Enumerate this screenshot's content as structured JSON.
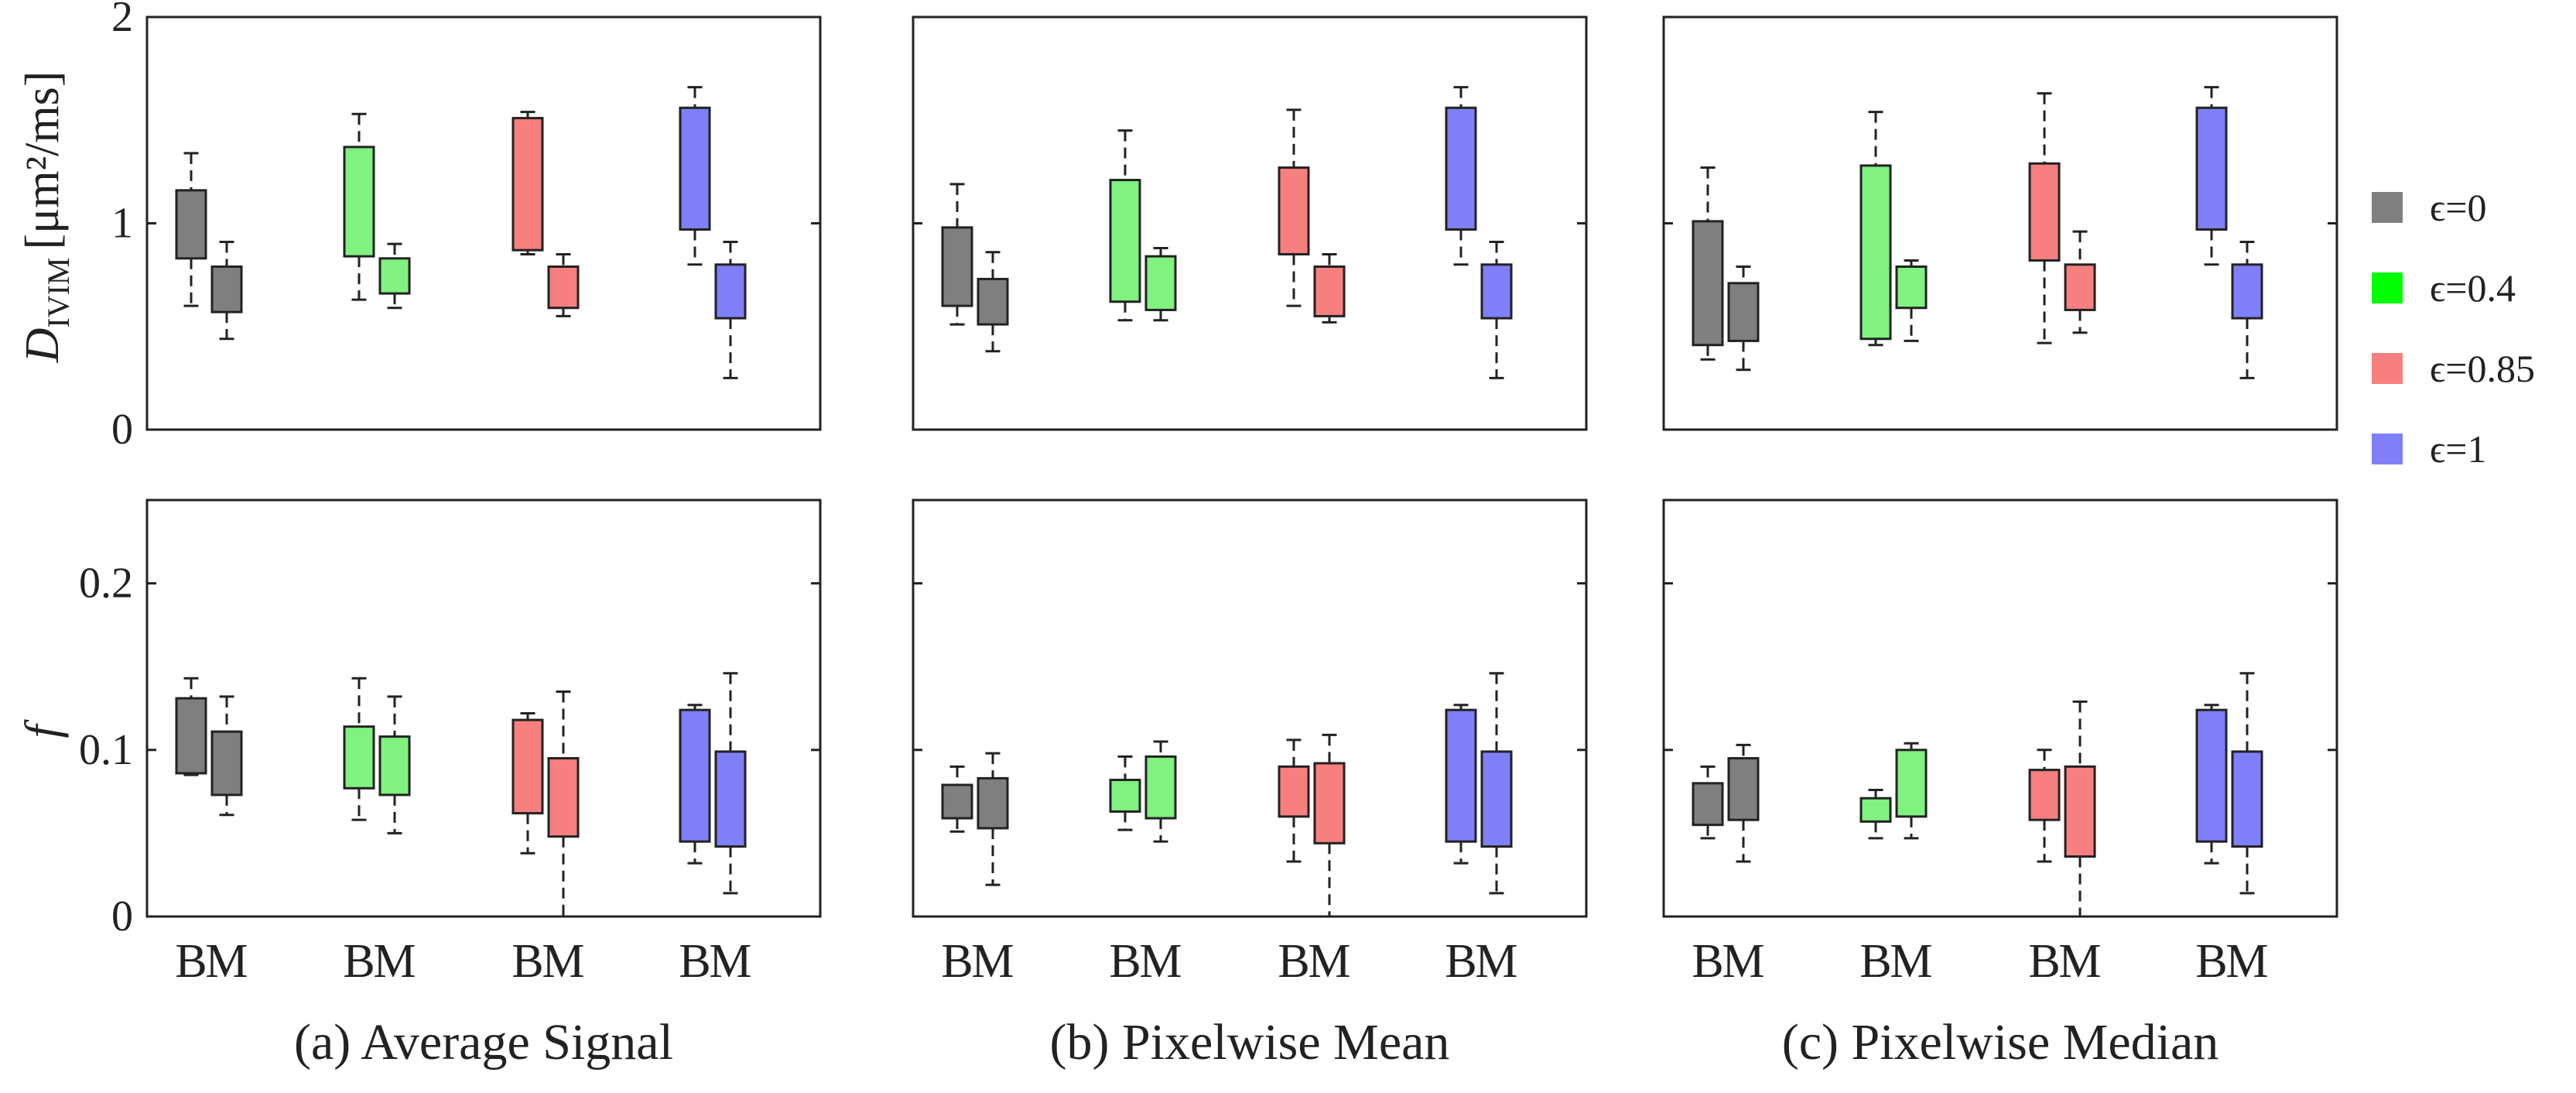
{
  "colors": {
    "eps0": "#7f7f7f",
    "eps04": "#7ff27f",
    "eps085": "#f87f7f",
    "eps1": "#7f7ff8",
    "eps04_legend": "#00ff00",
    "axis": "#222222"
  },
  "legend": {
    "placement": "right",
    "entries": [
      {
        "label": "ϵ=0",
        "color": "#7f7f7f"
      },
      {
        "label": "ϵ=0.4",
        "color": "#00ff00"
      },
      {
        "label": "ϵ=0.85",
        "color": "#f87f7f"
      },
      {
        "label": "ϵ=1",
        "color": "#7f7ff8"
      }
    ]
  },
  "row_labels": {
    "top": {
      "symbol": "D",
      "subscript": "IVIM",
      "unit": "[μm²/ms]"
    },
    "bottom": {
      "symbol": "f"
    }
  },
  "chart_data": [
    {
      "type": "box",
      "panel": "a-top",
      "caption": "",
      "ylim": [
        0,
        2
      ],
      "yticks": [
        "0",
        "1",
        "2"
      ],
      "categories": [
        "B",
        "M",
        "B",
        "M",
        "B",
        "M",
        "B",
        "M"
      ],
      "boxes": [
        {
          "series": "ϵ=0",
          "cat": "B",
          "lo": 0.6,
          "q1": 0.83,
          "q3": 1.16,
          "hi": 1.34
        },
        {
          "series": "ϵ=0",
          "cat": "M",
          "lo": 0.44,
          "q1": 0.57,
          "q3": 0.79,
          "hi": 0.91
        },
        {
          "series": "ϵ=0.4",
          "cat": "B",
          "lo": 0.63,
          "q1": 0.84,
          "q3": 1.37,
          "hi": 1.53
        },
        {
          "series": "ϵ=0.4",
          "cat": "M",
          "lo": 0.59,
          "q1": 0.66,
          "q3": 0.83,
          "hi": 0.9
        },
        {
          "series": "ϵ=0.85",
          "cat": "B",
          "lo": 0.85,
          "q1": 0.87,
          "q3": 1.51,
          "hi": 1.54
        },
        {
          "series": "ϵ=0.85",
          "cat": "M",
          "lo": 0.55,
          "q1": 0.59,
          "q3": 0.79,
          "hi": 0.85
        },
        {
          "series": "ϵ=1",
          "cat": "B",
          "lo": 0.8,
          "q1": 0.97,
          "q3": 1.56,
          "hi": 1.66
        },
        {
          "series": "ϵ=1",
          "cat": "M",
          "lo": 0.25,
          "q1": 0.54,
          "q3": 0.8,
          "hi": 0.91
        }
      ]
    },
    {
      "type": "box",
      "panel": "b-top",
      "caption": "",
      "ylim": [
        0,
        2
      ],
      "yticks": [
        "",
        "",
        ""
      ],
      "categories": [
        "B",
        "M",
        "B",
        "M",
        "B",
        "M",
        "B",
        "M"
      ],
      "boxes": [
        {
          "series": "ϵ=0",
          "cat": "B",
          "lo": 0.51,
          "q1": 0.6,
          "q3": 0.98,
          "hi": 1.19
        },
        {
          "series": "ϵ=0",
          "cat": "M",
          "lo": 0.38,
          "q1": 0.51,
          "q3": 0.73,
          "hi": 0.86
        },
        {
          "series": "ϵ=0.4",
          "cat": "B",
          "lo": 0.53,
          "q1": 0.62,
          "q3": 1.21,
          "hi": 1.45
        },
        {
          "series": "ϵ=0.4",
          "cat": "M",
          "lo": 0.53,
          "q1": 0.58,
          "q3": 0.84,
          "hi": 0.88
        },
        {
          "series": "ϵ=0.85",
          "cat": "B",
          "lo": 0.6,
          "q1": 0.85,
          "q3": 1.27,
          "hi": 1.55
        },
        {
          "series": "ϵ=0.85",
          "cat": "M",
          "lo": 0.52,
          "q1": 0.55,
          "q3": 0.79,
          "hi": 0.85
        },
        {
          "series": "ϵ=1",
          "cat": "B",
          "lo": 0.8,
          "q1": 0.97,
          "q3": 1.56,
          "hi": 1.66
        },
        {
          "series": "ϵ=1",
          "cat": "M",
          "lo": 0.25,
          "q1": 0.54,
          "q3": 0.8,
          "hi": 0.91
        }
      ]
    },
    {
      "type": "box",
      "panel": "c-top",
      "caption": "",
      "ylim": [
        0,
        2
      ],
      "yticks": [
        "",
        "",
        ""
      ],
      "categories": [
        "B",
        "M",
        "B",
        "M",
        "B",
        "M",
        "B",
        "M"
      ],
      "boxes": [
        {
          "series": "ϵ=0",
          "cat": "B",
          "lo": 0.34,
          "q1": 0.41,
          "q3": 1.01,
          "hi": 1.27
        },
        {
          "series": "ϵ=0",
          "cat": "M",
          "lo": 0.29,
          "q1": 0.43,
          "q3": 0.71,
          "hi": 0.79
        },
        {
          "series": "ϵ=0.4",
          "cat": "B",
          "lo": 0.41,
          "q1": 0.44,
          "q3": 1.28,
          "hi": 1.54
        },
        {
          "series": "ϵ=0.4",
          "cat": "M",
          "lo": 0.43,
          "q1": 0.59,
          "q3": 0.79,
          "hi": 0.82
        },
        {
          "series": "ϵ=0.85",
          "cat": "B",
          "lo": 0.42,
          "q1": 0.82,
          "q3": 1.29,
          "hi": 1.63
        },
        {
          "series": "ϵ=0.85",
          "cat": "M",
          "lo": 0.47,
          "q1": 0.58,
          "q3": 0.8,
          "hi": 0.96
        },
        {
          "series": "ϵ=1",
          "cat": "B",
          "lo": 0.8,
          "q1": 0.97,
          "q3": 1.56,
          "hi": 1.66
        },
        {
          "series": "ϵ=1",
          "cat": "M",
          "lo": 0.25,
          "q1": 0.54,
          "q3": 0.8,
          "hi": 0.91
        }
      ]
    },
    {
      "type": "box",
      "panel": "a-bottom",
      "caption": "(a) Average Signal",
      "ylim": [
        0,
        0.25
      ],
      "yticks": [
        "0",
        "0.1",
        "0.2"
      ],
      "categories": [
        "B",
        "M",
        "B",
        "M",
        "B",
        "M",
        "B",
        "M"
      ],
      "boxes": [
        {
          "series": "ϵ=0",
          "cat": "B",
          "lo": 0.085,
          "q1": 0.086,
          "q3": 0.131,
          "hi": 0.143
        },
        {
          "series": "ϵ=0",
          "cat": "M",
          "lo": 0.061,
          "q1": 0.073,
          "q3": 0.111,
          "hi": 0.132
        },
        {
          "series": "ϵ=0.4",
          "cat": "B",
          "lo": 0.058,
          "q1": 0.077,
          "q3": 0.114,
          "hi": 0.143
        },
        {
          "series": "ϵ=0.4",
          "cat": "M",
          "lo": 0.05,
          "q1": 0.073,
          "q3": 0.108,
          "hi": 0.132
        },
        {
          "series": "ϵ=0.85",
          "cat": "B",
          "lo": 0.038,
          "q1": 0.062,
          "q3": 0.118,
          "hi": 0.122
        },
        {
          "series": "ϵ=0.85",
          "cat": "M",
          "lo": 0.0,
          "q1": 0.048,
          "q3": 0.095,
          "hi": 0.135
        },
        {
          "series": "ϵ=1",
          "cat": "B",
          "lo": 0.032,
          "q1": 0.045,
          "q3": 0.124,
          "hi": 0.127
        },
        {
          "series": "ϵ=1",
          "cat": "M",
          "lo": 0.014,
          "q1": 0.042,
          "q3": 0.099,
          "hi": 0.146
        }
      ]
    },
    {
      "type": "box",
      "panel": "b-bottom",
      "caption": "(b) Pixelwise Mean",
      "ylim": [
        0,
        0.25
      ],
      "yticks": [
        "",
        "",
        ""
      ],
      "categories": [
        "B",
        "M",
        "B",
        "M",
        "B",
        "M",
        "B",
        "M"
      ],
      "boxes": [
        {
          "series": "ϵ=0",
          "cat": "B",
          "lo": 0.051,
          "q1": 0.059,
          "q3": 0.079,
          "hi": 0.09
        },
        {
          "series": "ϵ=0",
          "cat": "M",
          "lo": 0.019,
          "q1": 0.053,
          "q3": 0.083,
          "hi": 0.098
        },
        {
          "series": "ϵ=0.4",
          "cat": "B",
          "lo": 0.052,
          "q1": 0.063,
          "q3": 0.082,
          "hi": 0.096
        },
        {
          "series": "ϵ=0.4",
          "cat": "M",
          "lo": 0.045,
          "q1": 0.059,
          "q3": 0.096,
          "hi": 0.105
        },
        {
          "series": "ϵ=0.85",
          "cat": "B",
          "lo": 0.033,
          "q1": 0.06,
          "q3": 0.09,
          "hi": 0.106
        },
        {
          "series": "ϵ=0.85",
          "cat": "M",
          "lo": 0.0,
          "q1": 0.044,
          "q3": 0.092,
          "hi": 0.109
        },
        {
          "series": "ϵ=1",
          "cat": "B",
          "lo": 0.032,
          "q1": 0.045,
          "q3": 0.124,
          "hi": 0.127
        },
        {
          "series": "ϵ=1",
          "cat": "M",
          "lo": 0.014,
          "q1": 0.042,
          "q3": 0.099,
          "hi": 0.146
        }
      ]
    },
    {
      "type": "box",
      "panel": "c-bottom",
      "caption": "(c) Pixelwise Median",
      "ylim": [
        0,
        0.25
      ],
      "yticks": [
        "",
        "",
        ""
      ],
      "categories": [
        "B",
        "M",
        "B",
        "M",
        "B",
        "M",
        "B",
        "M"
      ],
      "boxes": [
        {
          "series": "ϵ=0",
          "cat": "B",
          "lo": 0.047,
          "q1": 0.055,
          "q3": 0.08,
          "hi": 0.09
        },
        {
          "series": "ϵ=0",
          "cat": "M",
          "lo": 0.033,
          "q1": 0.058,
          "q3": 0.095,
          "hi": 0.103
        },
        {
          "series": "ϵ=0.4",
          "cat": "B",
          "lo": 0.047,
          "q1": 0.057,
          "q3": 0.071,
          "hi": 0.076
        },
        {
          "series": "ϵ=0.4",
          "cat": "M",
          "lo": 0.047,
          "q1": 0.06,
          "q3": 0.1,
          "hi": 0.104
        },
        {
          "series": "ϵ=0.85",
          "cat": "B",
          "lo": 0.033,
          "q1": 0.058,
          "q3": 0.088,
          "hi": 0.1
        },
        {
          "series": "ϵ=0.85",
          "cat": "M",
          "lo": 0.0,
          "q1": 0.036,
          "q3": 0.09,
          "hi": 0.129
        },
        {
          "series": "ϵ=1",
          "cat": "B",
          "lo": 0.032,
          "q1": 0.045,
          "q3": 0.124,
          "hi": 0.127
        },
        {
          "series": "ϵ=1",
          "cat": "M",
          "lo": 0.014,
          "q1": 0.042,
          "q3": 0.099,
          "hi": 0.146
        }
      ]
    }
  ]
}
